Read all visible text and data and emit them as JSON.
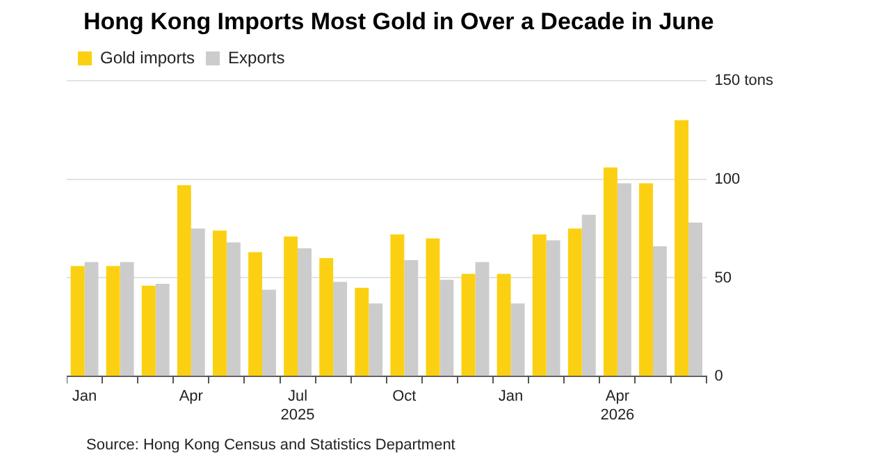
{
  "chart_data": {
    "type": "bar",
    "title": "Hong Kong Imports Most Gold in Over a Decade in June",
    "categories": [
      "Jan",
      null,
      null,
      "Apr",
      null,
      null,
      "Jul\n2025",
      null,
      null,
      "Oct",
      null,
      null,
      "Jan",
      null,
      null,
      "Apr\n2026",
      null,
      null
    ],
    "series": [
      {
        "name": "Gold imports",
        "color": "#fcd012",
        "values": [
          56,
          56,
          46,
          97,
          74,
          63,
          71,
          60,
          45,
          72,
          70,
          52,
          52,
          72,
          75,
          106,
          98,
          130
        ]
      },
      {
        "name": "Exports",
        "color": "#cccccc",
        "values": [
          58,
          58,
          47,
          75,
          68,
          44,
          65,
          48,
          37,
          59,
          49,
          58,
          37,
          69,
          82,
          98,
          66,
          78
        ]
      }
    ],
    "ylim": [
      0,
      150
    ],
    "yticks": [
      0,
      50,
      100,
      {
        "value": 150,
        "label": "150 tons"
      }
    ],
    "grid": "y",
    "legend": "top left",
    "annotations": [
      "Source: Hong Kong Census and Statistics Department"
    ]
  }
}
